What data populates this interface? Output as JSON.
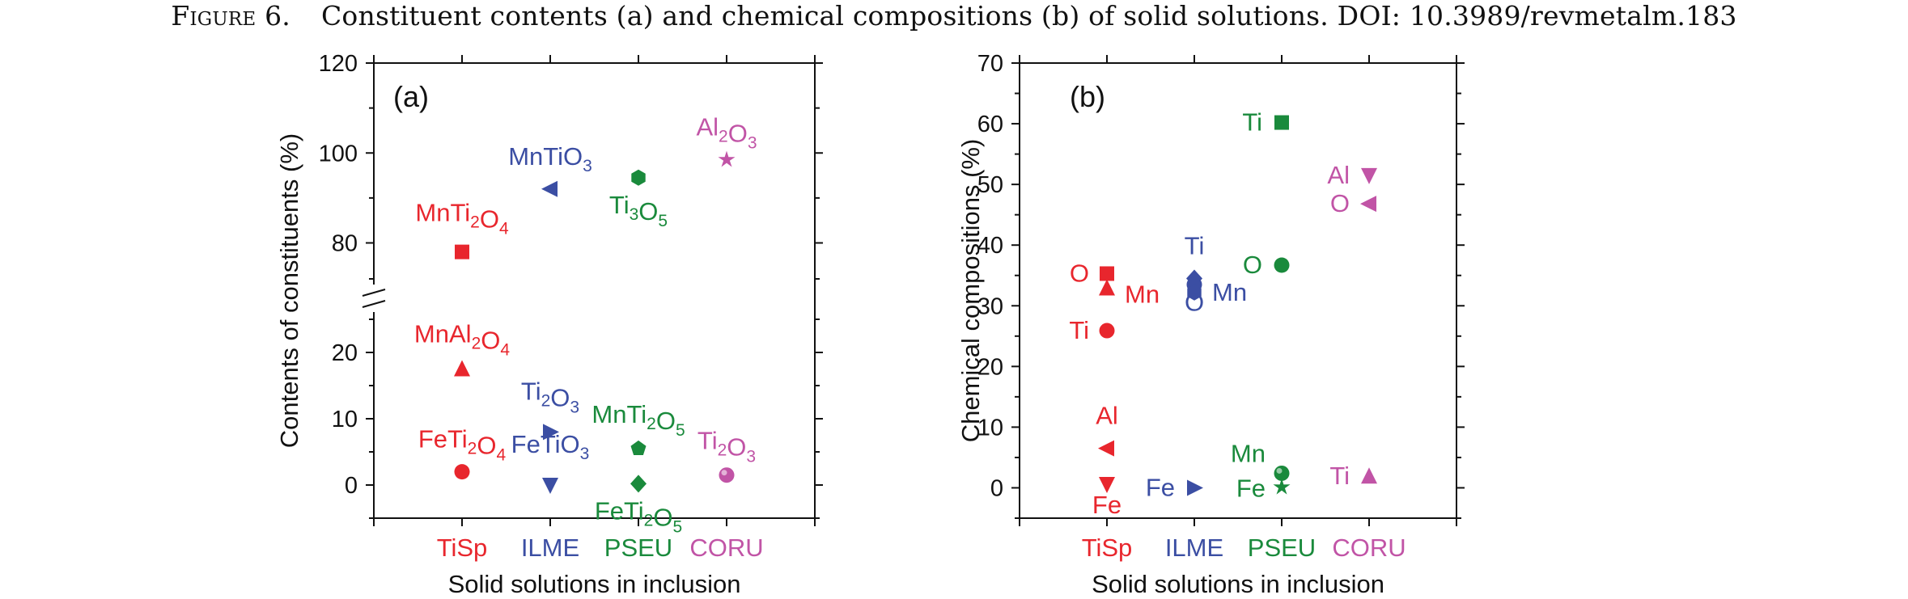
{
  "caption": {
    "figure": "Figure 6.",
    "text": "Constituent contents (a) and chemical compositions (b) of solid solutions. DOI: 10.3989/revmetalm.183"
  },
  "colors": {
    "TiSp": "#e8262d",
    "ILME": "#3b4ea3",
    "PSEU": "#1a8a3c",
    "CORU": "#c154a6"
  },
  "chart_data": [
    {
      "type": "scatter",
      "panel_label": "(a)",
      "xlabel": "Solid solutions in inclusion",
      "ylabel": "Contents of constituents (%)",
      "categories": [
        "TiSp",
        "ILME",
        "PSEU",
        "CORU"
      ],
      "y_axis_break": true,
      "ylim_lower": [
        -5,
        25
      ],
      "ylim_upper": [
        72,
        120
      ],
      "yticks_lower": [
        "0",
        "10",
        "20"
      ],
      "yticks_upper": [
        "80",
        "100",
        "120"
      ],
      "grid": false,
      "points": [
        {
          "category": "TiSp",
          "value": 78,
          "marker": "square",
          "label": "MnTi<sub>2</sub>O<sub>4</sub>"
        },
        {
          "category": "TiSp",
          "value": 17.5,
          "marker": "triangle-up",
          "label": "MnAl<sub>2</sub>O<sub>4</sub>"
        },
        {
          "category": "TiSp",
          "value": 2,
          "marker": "circle",
          "label": "FeTi<sub>2</sub>O<sub>4</sub>"
        },
        {
          "category": "ILME",
          "value": 92,
          "marker": "triangle-left",
          "label": "MnTiO<sub>3</sub>"
        },
        {
          "category": "ILME",
          "value": 8,
          "marker": "triangle-right",
          "label": "Ti<sub>2</sub>O<sub>3</sub>"
        },
        {
          "category": "ILME",
          "value": 0,
          "marker": "triangle-down",
          "label": "FeTiO<sub>3</sub>"
        },
        {
          "category": "PSEU",
          "value": 94.5,
          "marker": "hexagon",
          "label": "Ti<sub>3</sub>O<sub>5</sub>"
        },
        {
          "category": "PSEU",
          "value": 5.5,
          "marker": "pentagon",
          "label": "MnTi<sub>2</sub>O<sub>5</sub>"
        },
        {
          "category": "PSEU",
          "value": 0.2,
          "marker": "diamond",
          "label": "FeTi<sub>2</sub>O<sub>5</sub>"
        },
        {
          "category": "CORU",
          "value": 98.5,
          "marker": "star",
          "label": "Al<sub>2</sub>O<sub>3</sub>"
        },
        {
          "category": "CORU",
          "value": 1.5,
          "marker": "sphere",
          "label": "Ti<sub>2</sub>O<sub>3</sub>"
        }
      ]
    },
    {
      "type": "scatter",
      "panel_label": "(b)",
      "xlabel": "Solid solutions in inclusion",
      "ylabel": "Chemical compositions (%)",
      "categories": [
        "TiSp",
        "ILME",
        "PSEU",
        "CORU"
      ],
      "ylim": [
        -5,
        70
      ],
      "yticks": [
        "0",
        "10",
        "20",
        "30",
        "40",
        "50",
        "60",
        "70"
      ],
      "grid": false,
      "points": [
        {
          "category": "TiSp",
          "value": 35.3,
          "marker": "square",
          "label": "O"
        },
        {
          "category": "TiSp",
          "value": 32.9,
          "marker": "triangle-up",
          "label": "Mn"
        },
        {
          "category": "TiSp",
          "value": 25.9,
          "marker": "circle",
          "label": "Ti"
        },
        {
          "category": "TiSp",
          "value": 6.5,
          "marker": "triangle-left",
          "label": "Al"
        },
        {
          "category": "TiSp",
          "value": 0.6,
          "marker": "triangle-down",
          "label": "Fe"
        },
        {
          "category": "ILME",
          "value": 34.5,
          "marker": "diamond",
          "label": "Ti"
        },
        {
          "category": "ILME",
          "value": 33.5,
          "marker": "circle",
          "label": ""
        },
        {
          "category": "ILME",
          "value": 32.2,
          "marker": "hexagon",
          "label": "Mn"
        },
        {
          "category": "ILME",
          "value": 0,
          "marker": "triangle-right",
          "label": "Fe"
        },
        {
          "category": "ILME",
          "value": 30.5,
          "marker": "none",
          "label": "O"
        },
        {
          "category": "PSEU",
          "value": 60.2,
          "marker": "square",
          "label": "Ti"
        },
        {
          "category": "PSEU",
          "value": 36.7,
          "marker": "circle",
          "label": "O"
        },
        {
          "category": "PSEU",
          "value": 2.4,
          "marker": "sphere",
          "label": "Mn"
        },
        {
          "category": "PSEU",
          "value": 0.1,
          "marker": "star",
          "label": "Fe"
        },
        {
          "category": "CORU",
          "value": 51.5,
          "marker": "triangle-down",
          "label": "Al"
        },
        {
          "category": "CORU",
          "value": 46.8,
          "marker": "triangle-left",
          "label": "O"
        },
        {
          "category": "CORU",
          "value": 1.9,
          "marker": "triangle-up",
          "label": "Ti"
        }
      ]
    }
  ]
}
